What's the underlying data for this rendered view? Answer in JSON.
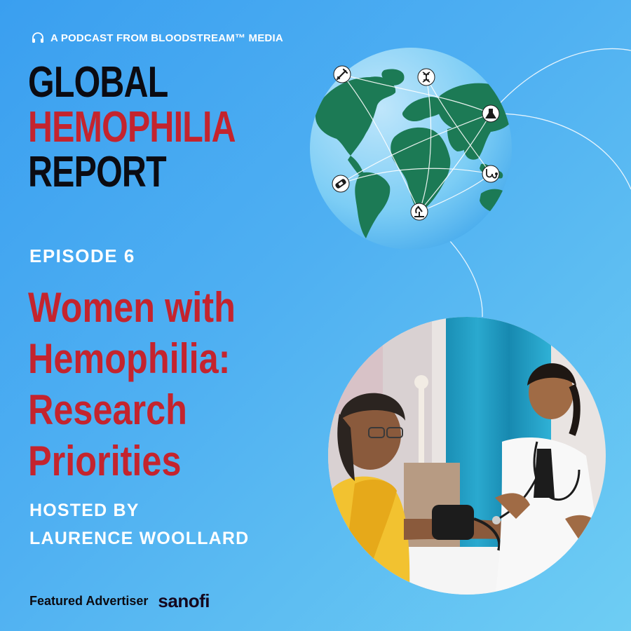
{
  "header": {
    "tagline": "A PODCAST FROM BLOODSTREAM™ MEDIA",
    "tagline_icon": "headphones-icon"
  },
  "show_title": {
    "line1": "GLOBAL",
    "line2": "HEMOPHILIA",
    "line3": "REPORT"
  },
  "episode": {
    "label": "EPISODE 6",
    "title_lines": [
      "Women with",
      "Hemophilia:",
      "Research",
      "Priorities"
    ]
  },
  "host": {
    "line1": "HOSTED BY",
    "line2": "LAURENCE WOOLLARD"
  },
  "footer": {
    "label": "Featured Advertiser",
    "sponsor": "sanofi"
  },
  "globe_icons": [
    "syringe-icon",
    "dna-icon",
    "flask-icon",
    "stethoscope-icon",
    "microscope-icon",
    "bandage-icon"
  ],
  "colors": {
    "background_start": "#3a9ff0",
    "background_end": "#6ecdf3",
    "accent_red": "#c4242e",
    "title_dark": "#0b0b12",
    "land_green": "#1c7a55",
    "white": "#ffffff"
  }
}
